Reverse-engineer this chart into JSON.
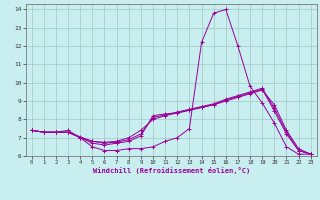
{
  "xlabel": "Windchill (Refroidissement éolien,°C)",
  "bg_color": "#c8eef0",
  "grid_color": "#a0c8c0",
  "line_color": "#990099",
  "xlim": [
    -0.5,
    23.5
  ],
  "ylim": [
    6,
    14.3
  ],
  "xticks": [
    0,
    1,
    2,
    3,
    4,
    5,
    6,
    7,
    8,
    9,
    10,
    11,
    12,
    13,
    14,
    15,
    16,
    17,
    18,
    19,
    20,
    21,
    22,
    23
  ],
  "yticks": [
    6,
    7,
    8,
    9,
    10,
    11,
    12,
    13,
    14
  ],
  "lines": [
    [
      7.4,
      7.3,
      7.3,
      7.4,
      7.0,
      6.5,
      6.3,
      6.3,
      6.4,
      6.4,
      6.5,
      6.8,
      7.0,
      7.5,
      12.2,
      13.8,
      14.0,
      12.0,
      9.8,
      8.9,
      7.8,
      6.5,
      6.1,
      6.1
    ],
    [
      7.4,
      7.3,
      7.3,
      7.3,
      7.0,
      6.7,
      6.6,
      6.7,
      6.8,
      7.1,
      8.2,
      8.3,
      8.35,
      8.5,
      8.65,
      8.8,
      9.0,
      9.2,
      9.4,
      9.6,
      8.8,
      7.4,
      6.4,
      6.1
    ],
    [
      7.4,
      7.3,
      7.3,
      7.3,
      7.0,
      6.8,
      6.7,
      6.75,
      6.9,
      7.2,
      8.1,
      8.25,
      8.4,
      8.55,
      8.7,
      8.85,
      9.1,
      9.3,
      9.5,
      9.7,
      8.6,
      7.3,
      6.3,
      6.1
    ],
    [
      7.4,
      7.3,
      7.3,
      7.3,
      7.05,
      6.8,
      6.75,
      6.8,
      7.0,
      7.4,
      8.0,
      8.2,
      8.35,
      8.5,
      8.65,
      8.8,
      9.05,
      9.25,
      9.45,
      9.65,
      8.45,
      7.2,
      6.3,
      6.1
    ]
  ]
}
